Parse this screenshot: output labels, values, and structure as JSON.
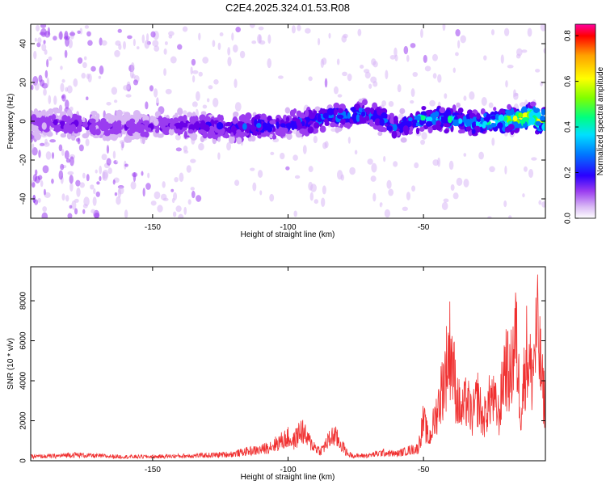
{
  "title": "C2E4.2025.324.01.53.R08",
  "colors": {
    "snr_line": "#f03030",
    "axis": "#000000",
    "spec_scale": [
      "#ffffff",
      "#d9b8f5",
      "#9a3cf0",
      "#6a00e8",
      "#2a00ff",
      "#0078ff",
      "#00e0ff",
      "#00ff80",
      "#80ff00",
      "#ffff00",
      "#ffa000",
      "#ff0000",
      "#ff00a0"
    ]
  },
  "chart_data": [
    {
      "type": "heatmap",
      "title": "C2E4.2025.324.01.53.R08",
      "xlabel": "Height of straight line (km)",
      "ylabel": "Frequency (Hz)",
      "xlim": [
        -195,
        -5
      ],
      "ylim": [
        -50,
        50
      ],
      "xticks": [
        -150,
        -100,
        -50
      ],
      "yticks": [
        -40,
        -20,
        0,
        20,
        40
      ],
      "colorbar": {
        "label": "Normalized spectral amplitude",
        "range": [
          0,
          0.85
        ],
        "ticks": [
          0.0,
          0.2,
          0.4,
          0.6,
          0.8
        ]
      },
      "ridge": {
        "x": [
          -195,
          -180,
          -160,
          -140,
          -120,
          -100,
          -80,
          -70,
          -60,
          -50,
          -40,
          -30,
          -20,
          -10,
          -5
        ],
        "frequency": [
          0,
          -2,
          -3,
          -2,
          -3,
          -2,
          3,
          4,
          -3,
          2,
          1,
          -1,
          1,
          2,
          0
        ],
        "amplitude": [
          0.15,
          0.2,
          0.18,
          0.22,
          0.3,
          0.32,
          0.4,
          0.4,
          0.35,
          0.45,
          0.45,
          0.45,
          0.55,
          0.7,
          0.6
        ]
      }
    },
    {
      "type": "line",
      "xlabel": "Height of straight line (km)",
      "ylabel": "SNR (10 * v/v)",
      "xlim": [
        -195,
        -5
      ],
      "ylim": [
        0,
        9700
      ],
      "xticks": [
        -150,
        -100,
        -50
      ],
      "yticks": [
        0,
        2000,
        4000,
        6000,
        8000
      ],
      "series": [
        {
          "name": "SNR",
          "x": [
            -195,
            -185,
            -180,
            -170,
            -160,
            -150,
            -140,
            -130,
            -120,
            -115,
            -110,
            -105,
            -100,
            -98,
            -95,
            -93,
            -90,
            -88,
            -85,
            -83,
            -80,
            -78,
            -75,
            -70,
            -65,
            -60,
            -55,
            -52,
            -50,
            -48,
            -45,
            -43,
            -40,
            -38,
            -36,
            -34,
            -32,
            -30,
            -28,
            -25,
            -22,
            -20,
            -18,
            -16,
            -14,
            -12,
            -10,
            -8,
            -6,
            -5
          ],
          "y": [
            300,
            350,
            450,
            350,
            300,
            300,
            350,
            400,
            500,
            700,
            800,
            1200,
            1700,
            1400,
            2300,
            1600,
            1000,
            700,
            1500,
            1900,
            1100,
            500,
            350,
            400,
            600,
            500,
            800,
            900,
            3000,
            1500,
            3700,
            5500,
            8600,
            5000,
            3500,
            4500,
            3200,
            4700,
            2900,
            4800,
            3300,
            7300,
            6000,
            9400,
            3500,
            8100,
            6200,
            9700,
            5200,
            4200
          ]
        }
      ]
    }
  ]
}
